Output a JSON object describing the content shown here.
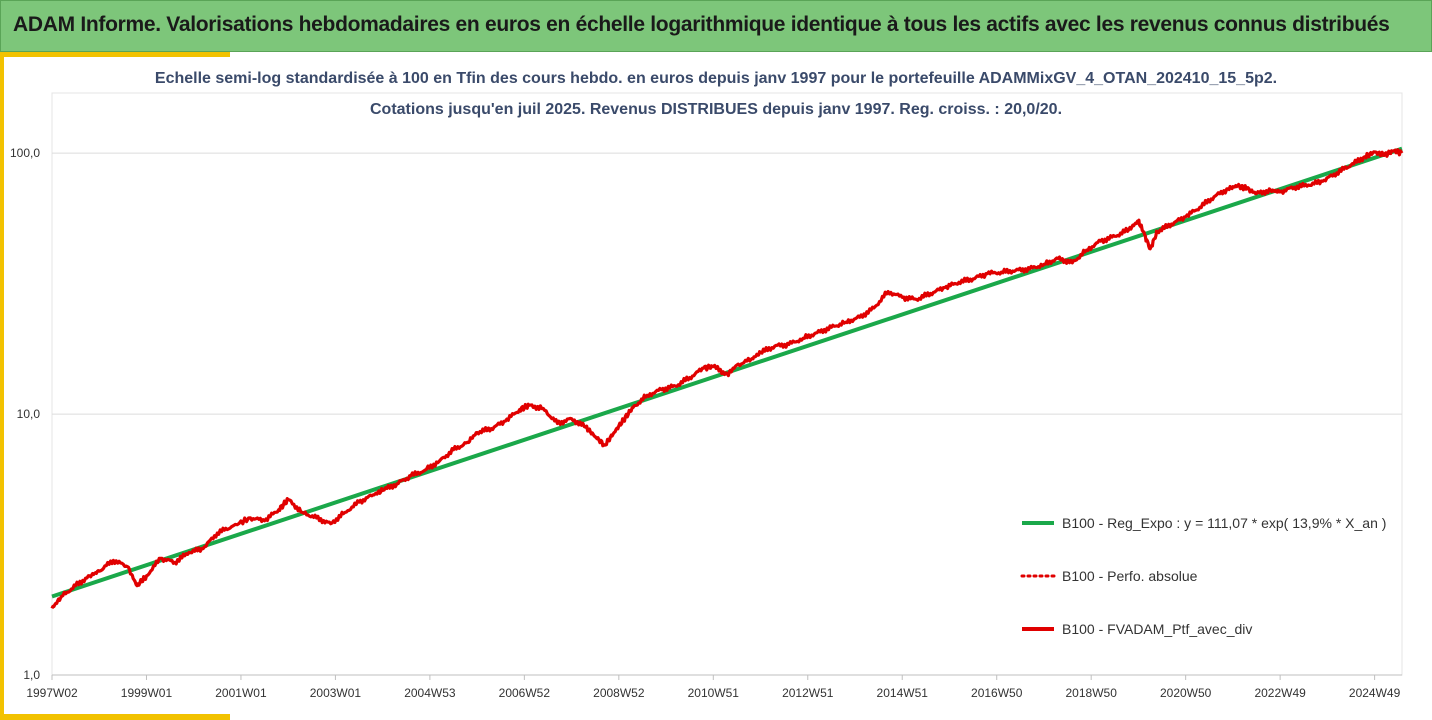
{
  "banner": {
    "title": "ADAM Informe. Valorisations hebdomadaires en euros en échelle logarithmique identique à tous les actifs avec les revenus connus distribués"
  },
  "colors": {
    "banner": "#7dc67a",
    "accent": "#f2c200",
    "regression": "#1aa84a",
    "portfolio": "#e00000"
  },
  "chart_data": {
    "type": "line",
    "title_line1": "Echelle semi-log standardisée  à 100 en Tfin des cours hebdo.  en euros depuis janv 1997 pour le portefeuille ADAMMixGV_4_OTAN_202410_15_5p2.",
    "title_line2": "Cotations  jusqu'en juil 2025. Revenus DISTRIBUES depuis janv 1997. Reg. croiss. : 20,0/20.",
    "y_scale": "log",
    "ylim": [
      1,
      170
    ],
    "y_ticks": [
      "100,0",
      "10,0",
      "1,0"
    ],
    "y_tick_values": [
      100,
      10,
      1
    ],
    "xlim": [
      1997.0,
      2025.58
    ],
    "x_ticks": [
      "1997W02",
      "1999W01",
      "2001W01",
      "2003W01",
      "2004W53",
      "2006W52",
      "2008W52",
      "2010W51",
      "2012W51",
      "2014W51",
      "2016W50",
      "2018W50",
      "2020W50",
      "2022W49",
      "2024W49"
    ],
    "x_tick_values": [
      1997.0,
      1999.0,
      2001.0,
      2003.0,
      2005.0,
      2007.0,
      2009.0,
      2011.0,
      2013.0,
      2015.0,
      2017.0,
      2019.0,
      2021.0,
      2023.0,
      2025.0
    ],
    "grid": "horizontal",
    "legend_position": "right",
    "series": [
      {
        "name": "B100 - Reg_Expo : y = 111,07 * exp( 13,9% *  X_an )",
        "style": "solid-green",
        "x": [
          1997.0,
          2025.58
        ],
        "y": [
          2.0,
          104.0
        ]
      },
      {
        "name": "B100 - Perfo. absolue",
        "style": "dotted-red",
        "x": [],
        "y": []
      },
      {
        "name": "B100 - FVADAM_Ptf_avec_div",
        "style": "solid-red",
        "x": [
          1997.0,
          1997.2,
          1997.5,
          1997.8,
          1998.0,
          1998.3,
          1998.6,
          1998.8,
          1999.0,
          1999.3,
          1999.6,
          1999.9,
          2000.2,
          2000.5,
          2000.8,
          2001.2,
          2001.5,
          2001.8,
          2002.0,
          2002.3,
          2002.6,
          2002.9,
          2003.2,
          2003.5,
          2003.8,
          2004.0,
          2004.3,
          2004.6,
          2004.9,
          2005.2,
          2005.5,
          2005.8,
          2006.0,
          2006.3,
          2006.6,
          2006.9,
          2007.1,
          2007.4,
          2007.7,
          2008.0,
          2008.3,
          2008.5,
          2008.7,
          2008.9,
          2009.1,
          2009.3,
          2009.6,
          2009.9,
          2010.2,
          2010.5,
          2010.8,
          2011.0,
          2011.3,
          2011.5,
          2011.8,
          2012.0,
          2012.3,
          2012.6,
          2012.9,
          2013.2,
          2013.5,
          2013.8,
          2014.1,
          2014.4,
          2014.7,
          2015.0,
          2015.3,
          2015.6,
          2015.9,
          2016.2,
          2016.5,
          2016.8,
          2017.1,
          2017.4,
          2017.7,
          2018.0,
          2018.3,
          2018.6,
          2018.9,
          2019.2,
          2019.5,
          2019.8,
          2020.0,
          2020.1,
          2020.25,
          2020.4,
          2020.7,
          2021.0,
          2021.3,
          2021.6,
          2021.9,
          2022.1,
          2022.3,
          2022.5,
          2022.8,
          2023.0,
          2023.3,
          2023.6,
          2023.9,
          2024.2,
          2024.5,
          2024.8,
          2025.0,
          2025.2,
          2025.4,
          2025.58
        ],
        "y": [
          1.8,
          2.0,
          2.2,
          2.4,
          2.5,
          2.75,
          2.6,
          2.2,
          2.4,
          2.8,
          2.7,
          2.95,
          3.05,
          3.5,
          3.7,
          4.0,
          3.9,
          4.3,
          4.7,
          4.2,
          4.0,
          3.8,
          4.2,
          4.6,
          4.9,
          5.1,
          5.4,
          5.8,
          6.1,
          6.6,
          7.3,
          7.8,
          8.5,
          8.8,
          9.4,
          10.4,
          10.8,
          10.5,
          9.2,
          9.6,
          8.9,
          8.2,
          7.6,
          8.5,
          9.5,
          10.6,
          11.8,
          12.4,
          12.8,
          13.8,
          15.0,
          15.2,
          14.2,
          15.4,
          16.2,
          17.2,
          18.2,
          18.5,
          19.5,
          20.5,
          21.5,
          22.5,
          23.5,
          25.5,
          29.5,
          28.0,
          27.5,
          29.0,
          30.5,
          32.0,
          33.0,
          34.5,
          35.0,
          35.5,
          36.0,
          37.5,
          39.5,
          38.0,
          42.5,
          46.0,
          48.0,
          51.0,
          55.0,
          50.0,
          43.0,
          50.0,
          53.5,
          57.0,
          62.0,
          68.0,
          73.0,
          75.0,
          73.0,
          70.0,
          72.0,
          71.0,
          74.0,
          75.5,
          78.0,
          84.0,
          90.0,
          97.0,
          101.0,
          98.0,
          102.0,
          100.0
        ]
      }
    ]
  }
}
